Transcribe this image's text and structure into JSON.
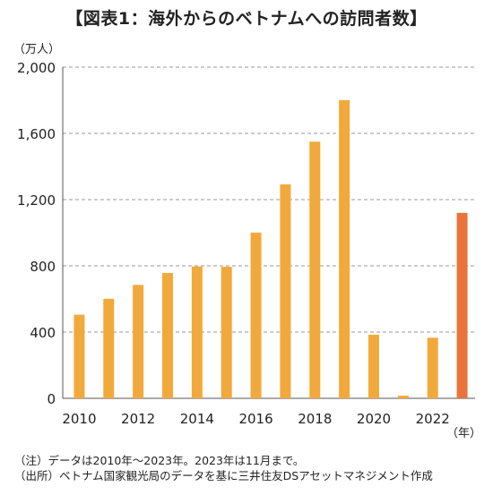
{
  "title": "【図表1：海外からのベトナムへの訪問者数】",
  "unit_label": "（万人）",
  "x_unit_label": "（年）",
  "notes": [
    "（注）データは2010年～2023年。2023年は11月まで。",
    "（出所）ベトナム国家観光局のデータを基に三井住友DSアセットマネジメント作成"
  ],
  "colors": {
    "bar": "#F2A93B",
    "highlight": "#E8743B",
    "grid": "#9a9a9a",
    "axis": "#555555"
  },
  "chart_data": {
    "type": "bar",
    "title": "【図表1：海外からのベトナムへの訪問者数】",
    "ylabel": "（万人）",
    "xlabel": "（年）",
    "categories": [
      "2010",
      "2011",
      "2012",
      "2013",
      "2014",
      "2015",
      "2016",
      "2017",
      "2018",
      "2019",
      "2020",
      "2021",
      "2022",
      "2023"
    ],
    "values": [
      505,
      601,
      685,
      757,
      796,
      794,
      1001,
      1292,
      1550,
      1801,
      384,
      16,
      366,
      1120
    ],
    "highlight_category": "2023",
    "x_tick_labels": [
      "2010",
      "2012",
      "2014",
      "2016",
      "2018",
      "2020",
      "2022"
    ],
    "y_ticks": [
      0,
      400,
      800,
      1200,
      1600,
      2000
    ],
    "y_tick_labels": [
      "0",
      "400",
      "800",
      "1,200",
      "1,600",
      "2,000"
    ],
    "ylim": [
      0,
      2000
    ],
    "grid": true,
    "grid_style": "dashed",
    "legend": "none"
  }
}
